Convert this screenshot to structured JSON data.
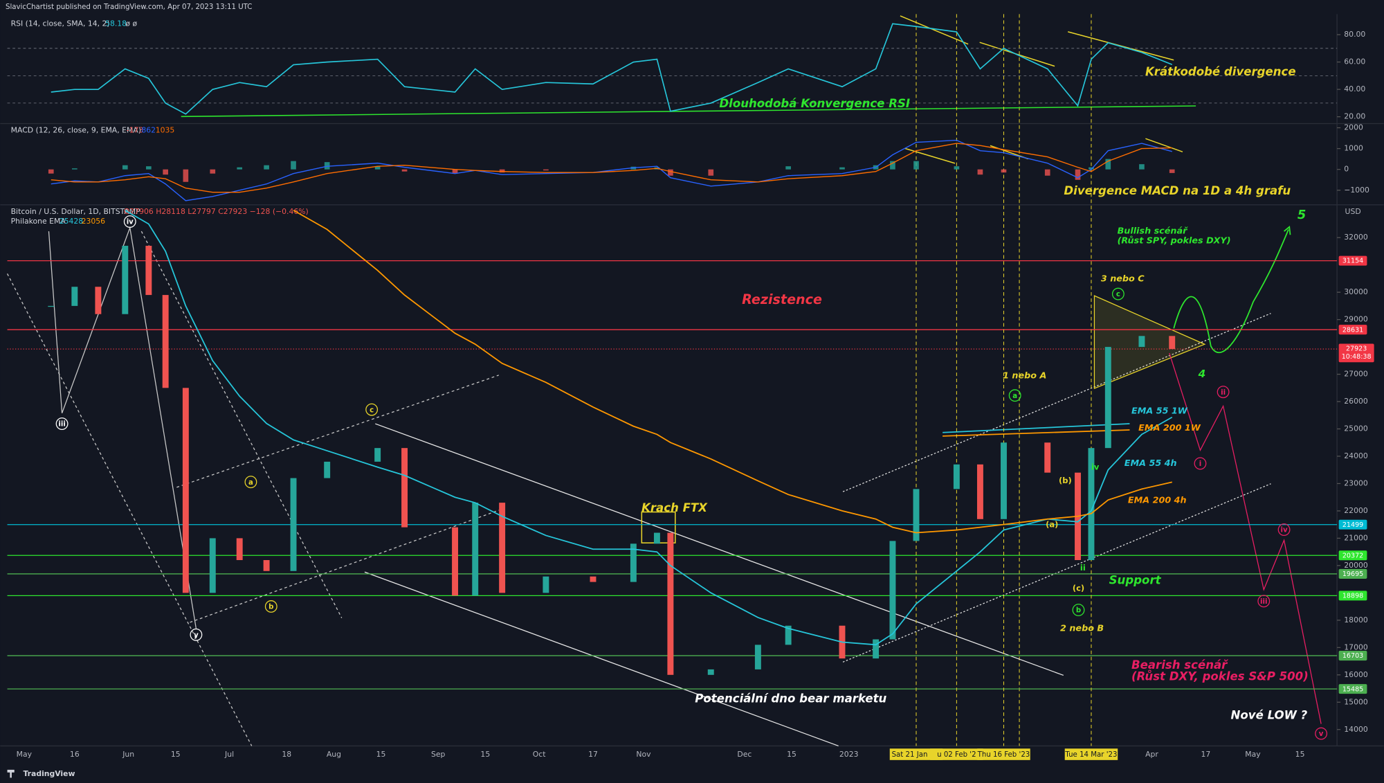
{
  "header": "SlavicChartist published on TradingView.com, Apr 07, 2023 13:11 UTC",
  "footer": "TradingView",
  "annotations": [
    "Dlouhodobá Konvergence RSI",
    "Krátkodobé divergence",
    "Divergence MACD na 1D a 4h grafu",
    "Rezistence",
    "Krach FTX",
    "Potenciální dno bear marketu",
    "Support",
    "Bullish scénář",
    "(Růst SPY, pokles DXY)",
    "Bearish scénář",
    "(Růst DXY, pokles S&P 500)",
    "Nové LOW ?",
    "3 nebo C",
    "1 nebo A",
    "2 nebo B",
    "EMA 55 1W",
    "EMA 200 1W",
    "EMA 55 4h",
    "EMA 200 4h",
    "5",
    "4"
  ],
  "waves": [
    "iii",
    "iv",
    "y",
    "a",
    "b",
    "c",
    "c",
    "a",
    "b",
    "(b)",
    "(a)",
    "(c)",
    "iv",
    "ii",
    "i",
    "ii",
    "iii",
    "iv",
    "v"
  ],
  "chart_data": [
    {
      "type": "candlestick",
      "title": "Bitcoin / U.S. Dollar, 1D, BITSTAMP",
      "ohlc": "O27906 H28118 L27797 C27923 −128 (−0.46%)",
      "legend_title": "Philakone EMA",
      "currency": "USD",
      "x": [
        "2022-05-09",
        "2022-05-16",
        "2022-05-23",
        "2022-05-31",
        "2022-06-07",
        "2022-06-12",
        "2022-06-18",
        "2022-06-26",
        "2022-07-04",
        "2022-07-12",
        "2022-07-20",
        "2022-07-30",
        "2022-08-14",
        "2022-08-22",
        "2022-09-06",
        "2022-09-12",
        "2022-09-20",
        "2022-10-03",
        "2022-10-17",
        "2022-10-29",
        "2022-11-05",
        "2022-11-09",
        "2022-11-21",
        "2022-12-05",
        "2022-12-14",
        "2022-12-30",
        "2023-01-09",
        "2023-01-14",
        "2023-01-21",
        "2023-02-02",
        "2023-02-09",
        "2023-02-16",
        "2023-03-01",
        "2023-03-10",
        "2023-03-14",
        "2023-03-19",
        "2023-03-29",
        "2023-04-07"
      ],
      "values": [
        29500,
        30200,
        29200,
        31700,
        29900,
        26500,
        19000,
        21000,
        20200,
        19800,
        23200,
        23800,
        24300,
        21400,
        18900,
        22300,
        19000,
        19600,
        19400,
        20800,
        21200,
        16000,
        16200,
        17100,
        17800,
        16600,
        17300,
        20900,
        22800,
        23700,
        21700,
        24500,
        23400,
        20200,
        24300,
        28000,
        28400,
        27923
      ],
      "up_color": "#26a69a",
      "down_color": "#ef5350",
      "overlays": [
        {
          "color": "#26c6da",
          "values": [
            null,
            null,
            null,
            33000,
            32500,
            31500,
            29500,
            27500,
            26200,
            25200,
            24600,
            24200,
            23600,
            23300,
            22500,
            22300,
            21800,
            21100,
            20600,
            20600,
            20500,
            20000,
            19000,
            18100,
            17700,
            17200,
            17100,
            17500,
            18600,
            19800,
            20500,
            21300,
            21700,
            21600,
            22000,
            23500,
            24800,
            25428
          ]
        },
        {
          "color": "#ff9800",
          "values": [
            null,
            null,
            null,
            null,
            null,
            null,
            null,
            null,
            null,
            null,
            33000,
            32300,
            30800,
            29900,
            28500,
            28100,
            27400,
            26700,
            25800,
            25100,
            24800,
            24500,
            23900,
            23100,
            22600,
            22000,
            21700,
            21400,
            21200,
            21300,
            21400,
            21500,
            21700,
            21800,
            21900,
            22400,
            22800,
            23056
          ]
        }
      ],
      "xlim": [
        "2022-04-26",
        "2023-05-26"
      ],
      "xticks": [
        {
          "value": "2022-05-01",
          "label": "May"
        },
        {
          "value": "2022-05-16",
          "label": "16"
        },
        {
          "value": "2022-06-01",
          "label": "Jun"
        },
        {
          "value": "2022-06-15",
          "label": "15"
        },
        {
          "value": "2022-07-01",
          "label": "Jul"
        },
        {
          "value": "2022-07-18",
          "label": "18"
        },
        {
          "value": "2022-08-01",
          "label": "Aug"
        },
        {
          "value": "2022-08-15",
          "label": "15"
        },
        {
          "value": "2022-09-01",
          "label": "Sep"
        },
        {
          "value": "2022-09-15",
          "label": "15"
        },
        {
          "value": "2022-10-01",
          "label": "Oct"
        },
        {
          "value": "2022-10-17",
          "label": "17"
        },
        {
          "value": "2022-11-01",
          "label": "Nov"
        },
        {
          "value": "2022-12-01",
          "label": "Dec"
        },
        {
          "value": "2022-12-15",
          "label": "15"
        },
        {
          "value": "2023-01-01",
          "label": "2023"
        },
        {
          "value": "2023-04-01",
          "label": "Apr"
        },
        {
          "value": "2023-04-17",
          "label": "17"
        },
        {
          "value": "2023-05-01",
          "label": "May"
        },
        {
          "value": "2023-05-15",
          "label": "15"
        }
      ],
      "ylim": [
        13400,
        33200
      ],
      "yticks": [
        32000,
        30000,
        29000,
        27000,
        26000,
        25000,
        24000,
        23000,
        22000,
        21000,
        20000,
        18000,
        17000,
        16000,
        15000,
        14000
      ],
      "grid": false,
      "levels": [
        {
          "value": 31154,
          "color": "#f23645"
        },
        {
          "value": 28631,
          "color": "#f23645"
        },
        {
          "value": 21499,
          "color": "#00bcd4"
        },
        {
          "value": 20372,
          "color": "#2ee62e"
        },
        {
          "value": 19695,
          "color": "#4caf50"
        },
        {
          "value": 18898,
          "color": "#2ee62e"
        },
        {
          "value": 16703,
          "color": "#4caf50"
        },
        {
          "value": 15485,
          "color": "#4caf50"
        }
      ],
      "last": {
        "value": 27923,
        "countdown": "10:48:38",
        "color": "#f23645"
      },
      "highlights": [
        {
          "date": "2023-01-21",
          "label": "Sat 21 Jan '23"
        },
        {
          "date": "2023-02-02",
          "label": "u 02 Feb '2"
        },
        {
          "date": "2023-02-16",
          "label": "Thu 16 Feb '23"
        },
        {
          "date": "2023-03-14",
          "label": "Tue 14 Mar '23"
        }
      ]
    },
    {
      "type": "line",
      "title": "RSI (14, close, SMA, 14, 2)",
      "extra": "ø ø",
      "color": "#26c6da",
      "x": [
        "2022-05-09",
        "2022-05-16",
        "2022-05-23",
        "2022-05-31",
        "2022-06-07",
        "2022-06-12",
        "2022-06-18",
        "2022-06-26",
        "2022-07-04",
        "2022-07-12",
        "2022-07-20",
        "2022-07-30",
        "2022-08-14",
        "2022-08-22",
        "2022-09-06",
        "2022-09-12",
        "2022-09-20",
        "2022-10-03",
        "2022-10-17",
        "2022-10-29",
        "2022-11-05",
        "2022-11-09",
        "2022-11-21",
        "2022-12-05",
        "2022-12-14",
        "2022-12-30",
        "2023-01-09",
        "2023-01-14",
        "2023-01-21",
        "2023-02-02",
        "2023-02-09",
        "2023-02-16",
        "2023-03-01",
        "2023-03-10",
        "2023-03-14",
        "2023-03-19",
        "2023-03-29",
        "2023-04-07"
      ],
      "values": [
        38,
        40,
        40,
        55,
        48,
        30,
        22,
        40,
        45,
        42,
        58,
        60,
        62,
        42,
        38,
        55,
        40,
        45,
        44,
        60,
        62,
        24,
        30,
        45,
        55,
        42,
        55,
        88,
        86,
        82,
        55,
        70,
        55,
        28,
        62,
        74,
        67,
        58.18
      ],
      "xlim": [
        "2022-04-26",
        "2023-05-26"
      ],
      "ylim": [
        15,
        95
      ],
      "yticks": [
        {
          "value": 80,
          "label": "80.00"
        },
        {
          "value": 60,
          "label": "60.00"
        },
        {
          "value": 40,
          "label": "40.00"
        },
        {
          "value": 20,
          "label": "20.00"
        }
      ],
      "hlines": [
        70,
        50,
        30
      ]
    },
    {
      "type": "macd",
      "title": "MACD (12, 26, close, 9, EMA, EMA)",
      "up_color": "#26a69a",
      "down_color": "#ef5350",
      "x": [
        "2022-05-09",
        "2022-05-16",
        "2022-05-23",
        "2022-05-31",
        "2022-06-07",
        "2022-06-12",
        "2022-06-18",
        "2022-06-26",
        "2022-07-04",
        "2022-07-12",
        "2022-07-20",
        "2022-07-30",
        "2022-08-14",
        "2022-08-22",
        "2022-09-06",
        "2022-09-12",
        "2022-09-20",
        "2022-10-03",
        "2022-10-17",
        "2022-10-29",
        "2022-11-05",
        "2022-11-09",
        "2022-11-21",
        "2022-12-05",
        "2022-12-14",
        "2022-12-30",
        "2023-01-09",
        "2023-01-14",
        "2023-01-21",
        "2023-02-02",
        "2023-02-09",
        "2023-02-16",
        "2023-03-01",
        "2023-03-10",
        "2023-03-14",
        "2023-03-19",
        "2023-03-29",
        "2023-04-07"
      ],
      "histogram": [
        -200,
        50,
        0,
        200,
        150,
        -250,
        -600,
        -200,
        100,
        200,
        400,
        350,
        150,
        -100,
        -200,
        0,
        -150,
        -50,
        0,
        130,
        100,
        -300,
        -300,
        0,
        150,
        100,
        200,
        400,
        400,
        150,
        -250,
        -150,
        -300,
        -500,
        100,
        500,
        250,
        -173
      ],
      "lines": [
        {
          "color": "#2962ff",
          "values": [
            -700,
            -550,
            -600,
            -300,
            -200,
            -700,
            -1500,
            -1300,
            -1000,
            -700,
            -200,
            150,
            300,
            100,
            -200,
            -50,
            -250,
            -200,
            -150,
            80,
            150,
            -400,
            -800,
            -600,
            -300,
            -200,
            100,
            700,
            1300,
            1400,
            900,
            800,
            300,
            -400,
            0,
            900,
            1250,
            862
          ]
        },
        {
          "color": "#ff6d00",
          "values": [
            -500,
            -600,
            -600,
            -500,
            -350,
            -450,
            -900,
            -1100,
            -1100,
            -900,
            -600,
            -200,
            150,
            200,
            0,
            -50,
            -100,
            -150,
            -150,
            -50,
            50,
            -100,
            -500,
            -600,
            -450,
            -300,
            -100,
            300,
            900,
            1250,
            1150,
            950,
            600,
            100,
            -100,
            400,
            1000,
            1035
          ]
        }
      ],
      "xlim": [
        "2022-04-26",
        "2023-05-26"
      ],
      "ylim": [
        -1700,
        2200
      ],
      "yticks": [
        2000,
        1000,
        0,
        {
          "value": -1000,
          "label": "−1000"
        }
      ]
    }
  ]
}
